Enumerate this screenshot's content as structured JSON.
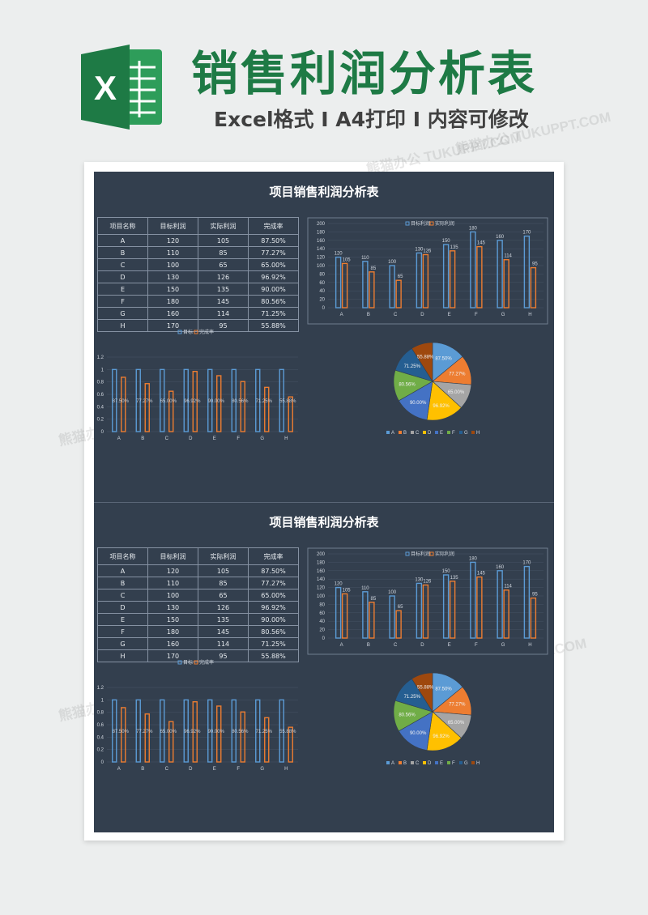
{
  "hero": {
    "title": "销售利润分析表",
    "subtitle": "Excel格式 I A4打印 I 内容可修改",
    "logo_letter": "X"
  },
  "watermark": "熊猫办公 TUKUPPT.COM",
  "sheets": [
    {
      "title": "项目销售利润分析表"
    },
    {
      "title": "项目销售利润分析表"
    }
  ],
  "table": {
    "headers": [
      "项目名称",
      "目标利润",
      "实际利润",
      "完成率"
    ],
    "rows": [
      [
        "A",
        "120",
        "105",
        "87.50%"
      ],
      [
        "B",
        "110",
        "85",
        "77.27%"
      ],
      [
        "C",
        "100",
        "65",
        "65.00%"
      ],
      [
        "D",
        "130",
        "126",
        "96.92%"
      ],
      [
        "E",
        "150",
        "135",
        "90.00%"
      ],
      [
        "F",
        "180",
        "145",
        "80.56%"
      ],
      [
        "G",
        "160",
        "114",
        "71.25%"
      ],
      [
        "H",
        "170",
        "95",
        "55.88%"
      ]
    ]
  },
  "colors": {
    "blue": "#5b9bd5",
    "orange": "#ed7d31",
    "sheet_bg": "#333f4e",
    "title_green": "#1e7a45"
  },
  "chart_data": [
    {
      "type": "bar",
      "categories": [
        "A",
        "B",
        "C",
        "D",
        "E",
        "F",
        "G",
        "H"
      ],
      "series": [
        {
          "name": "目标利润",
          "values": [
            120,
            110,
            100,
            130,
            150,
            180,
            160,
            170
          ]
        },
        {
          "name": "实际利润",
          "values": [
            105,
            85,
            65,
            126,
            135,
            145,
            114,
            95
          ]
        }
      ],
      "ylim": [
        0,
        200
      ],
      "yticks": [
        0,
        20,
        40,
        60,
        80,
        100,
        120,
        140,
        160,
        180,
        200
      ],
      "legend": "top-right",
      "data_labels": true
    },
    {
      "type": "bar",
      "categories": [
        "A",
        "B",
        "C",
        "D",
        "E",
        "F",
        "G",
        "H"
      ],
      "series": [
        {
          "name": "目标",
          "values": [
            1,
            1,
            1,
            1,
            1,
            1,
            1,
            1
          ]
        },
        {
          "name": "完成率",
          "values": [
            0.875,
            0.7727,
            0.65,
            0.9692,
            0.9,
            0.8056,
            0.7125,
            0.5588
          ]
        }
      ],
      "data_labels": [
        "87.50%",
        "77.27%",
        "65.00%",
        "96.92%",
        "90.00%",
        "80.56%",
        "71.25%",
        "55.88%"
      ],
      "ylim": [
        0,
        1.2
      ],
      "yticks": [
        "0",
        "0.2",
        "0.4",
        "0.6",
        "0.8",
        "1",
        "1.2"
      ],
      "legend": "top-center"
    },
    {
      "type": "pie",
      "categories": [
        "A",
        "B",
        "C",
        "D",
        "E",
        "F",
        "G",
        "H"
      ],
      "values": [
        87.5,
        77.27,
        65.0,
        96.92,
        90.0,
        80.56,
        71.25,
        55.88
      ],
      "labels": [
        "87.50%",
        "77.27%",
        "65.00%",
        "96.92%",
        "90.00%",
        "80.56%",
        "71.25%",
        "55.88%"
      ],
      "colors": [
        "#5b9bd5",
        "#ed7d31",
        "#a5a5a5",
        "#ffc000",
        "#4472c4",
        "#70ad47",
        "#255e91",
        "#9e480e"
      ],
      "legend": "bottom"
    }
  ]
}
